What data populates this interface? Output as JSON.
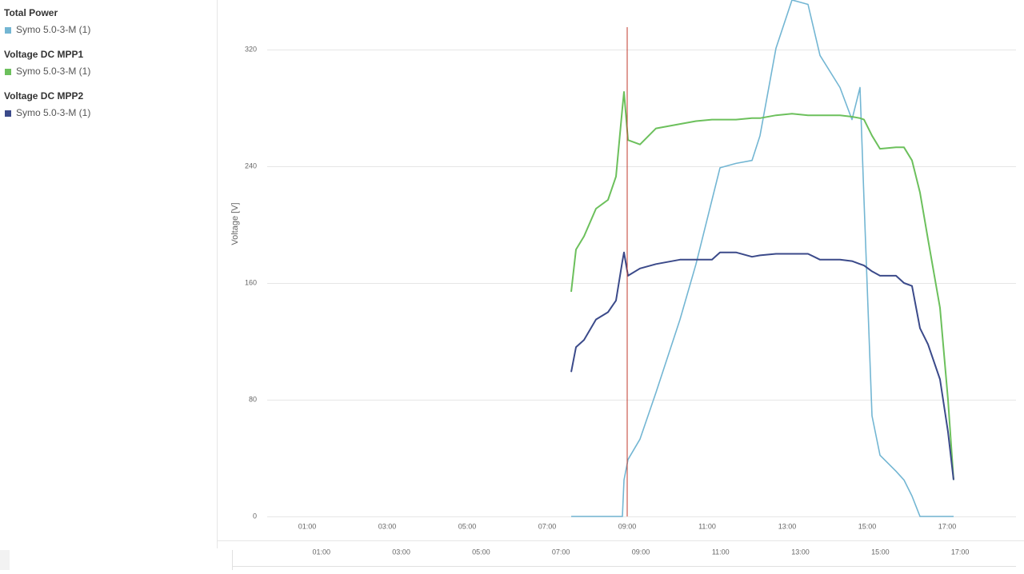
{
  "chart_data": {
    "type": "line",
    "y_label": "Voltage [V]",
    "x": [
      7.6,
      7.72,
      7.92,
      8.22,
      8.52,
      8.72,
      8.88,
      8.92,
      9.02,
      9.32,
      9.72,
      10.32,
      10.72,
      11.12,
      11.32,
      11.72,
      12.12,
      12.32,
      12.72,
      13.12,
      13.52,
      13.82,
      14.32,
      14.62,
      14.82,
      14.92,
      15.12,
      15.32,
      15.72,
      15.92,
      16.12,
      16.32,
      16.52,
      16.82,
      17.02,
      17.16
    ],
    "series": [
      {
        "group": "Total Power",
        "name": "Symo 5.0-3-M (1)",
        "color": "#73b6d3",
        "values": [
          0,
          0,
          0,
          0,
          0,
          0,
          0,
          25,
          39,
          53,
          85,
          135,
          173,
          217,
          239,
          242,
          244,
          261,
          321,
          354,
          351,
          316,
          294,
          272,
          294,
          217,
          69,
          42,
          31,
          25,
          14,
          0,
          0,
          0,
          0,
          0
        ]
      },
      {
        "group": "Voltage DC MPP1",
        "name": "Symo 5.0-3-M (1)",
        "color": "#6cc05c",
        "values": [
          154,
          183,
          192,
          211,
          217,
          233,
          280,
          291,
          258,
          255,
          266,
          269,
          271,
          272,
          272,
          272,
          273,
          273,
          275,
          276,
          275,
          275,
          275,
          274,
          273,
          272,
          261,
          252,
          253,
          253,
          244,
          222,
          190,
          143,
          80,
          25
        ]
      },
      {
        "group": "Voltage DC MPP2",
        "name": "Symo 5.0-3-M (1)",
        "color": "#3b4a8a",
        "values": [
          99,
          116,
          121,
          135,
          140,
          148,
          175,
          181,
          165,
          170,
          173,
          176,
          176,
          176,
          181,
          181,
          178,
          179,
          180,
          180,
          180,
          176,
          176,
          175,
          173,
          172,
          168,
          165,
          165,
          160,
          158,
          129,
          118,
          94,
          58,
          25
        ]
      }
    ],
    "marker_x": 9.0,
    "marker_color": "#c0392b",
    "xlim": [
      0,
      18.72
    ],
    "ylim": [
      0,
      354
    ],
    "navigator_xlim": [
      -1.24,
      18.4
    ],
    "xticks": [
      {
        "value": 1,
        "label": "01:00"
      },
      {
        "value": 3,
        "label": "03:00"
      },
      {
        "value": 5,
        "label": "05:00"
      },
      {
        "value": 7,
        "label": "07:00"
      },
      {
        "value": 9,
        "label": "09:00"
      },
      {
        "value": 11,
        "label": "11:00"
      },
      {
        "value": 13,
        "label": "13:00"
      },
      {
        "value": 15,
        "label": "15:00"
      },
      {
        "value": 17,
        "label": "17:00"
      }
    ],
    "yticks": [
      0,
      80,
      160,
      240,
      320
    ],
    "grid": true
  }
}
